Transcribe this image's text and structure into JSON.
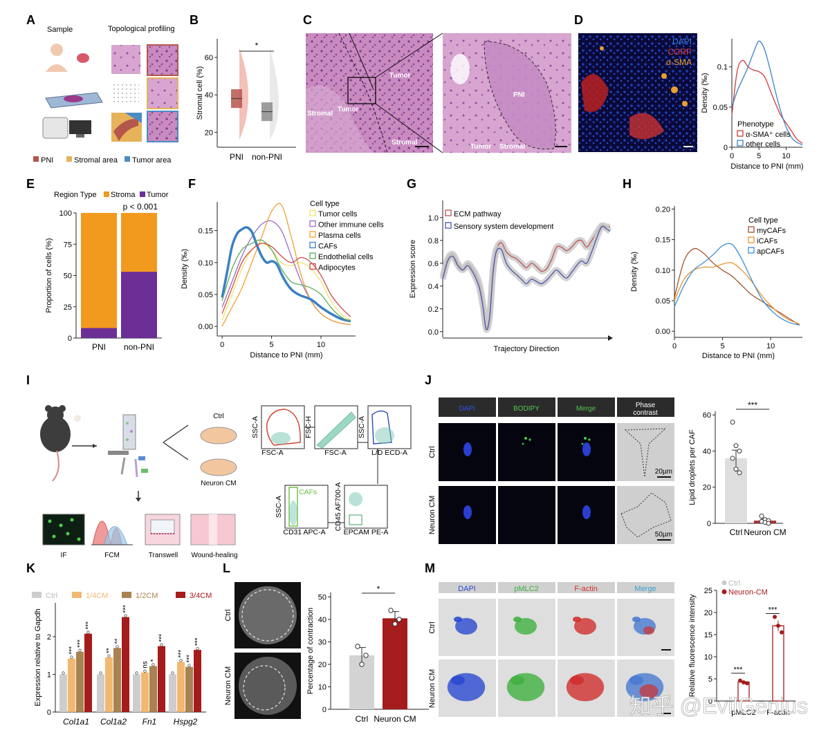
{
  "panel_letters": [
    "A",
    "B",
    "C",
    "D",
    "E",
    "F",
    "G",
    "H",
    "I",
    "J",
    "K",
    "L",
    "M"
  ],
  "panelA": {
    "sample_label": "Sample",
    "profiling_label": "Topological profiling",
    "legend": [
      {
        "label": "PNI",
        "color": "#b5564c"
      },
      {
        "label": "Stromal area",
        "color": "#e6b25a"
      },
      {
        "label": "Tumor area",
        "color": "#4a8cc4"
      }
    ]
  },
  "panelC": {
    "labels": [
      "Tumor",
      "Stromal",
      "Tumor",
      "Stromal",
      "PNI",
      "Tumor",
      "Stromal"
    ]
  },
  "panelD": {
    "stains": [
      {
        "label": "DAPI",
        "color": "#3a7fe0"
      },
      {
        "label": "CGRP",
        "color": "#e03a3a"
      },
      {
        "label": "α-SMA",
        "color": "#e8a030"
      }
    ]
  },
  "panelI": {
    "ctrl_label": "Ctrl",
    "cm_label": "Neuron CM",
    "assays": [
      "IF",
      "FCM",
      "Transwell",
      "Wound-healing"
    ],
    "gates": [
      {
        "x": "FSC-A",
        "y": "SSC-A"
      },
      {
        "x": "FSC-A",
        "y": "FSC-H"
      },
      {
        "x": "L/D ECD-A",
        "y": "SSC-A"
      },
      {
        "x": "CD31 APC-A",
        "y": "SSC-A",
        "gate": "CAFs"
      },
      {
        "x": "EPCAM PE-A",
        "y": "CD45 AF700-A"
      }
    ]
  },
  "panelJ": {
    "columns": [
      "DAPI",
      "BODIPY",
      "Merge",
      "Phase contrast"
    ],
    "rows": [
      "Ctrl",
      "Neuron CM"
    ],
    "scalebars": [
      "20µm",
      "50µm"
    ]
  },
  "panelM": {
    "columns": [
      "DAPI",
      "pMLC2",
      "F-actin",
      "Merge"
    ],
    "rows": [
      "Ctrl",
      "Neuron CM"
    ]
  },
  "panelL": {
    "rows": [
      "Ctrl",
      "Neuron CM"
    ]
  },
  "watermark": "知乎 @EvilGenius",
  "chart_data": [
    {
      "panel": "B",
      "type": "box",
      "ylabel": "Stromal cell (%)",
      "categories": [
        "PNI",
        "non-PNI"
      ],
      "yticks": [
        20,
        40,
        60
      ],
      "ylim": [
        12,
        70
      ],
      "box": [
        {
          "q1": 33,
          "median": 38,
          "q3": 43
        },
        {
          "q1": 26,
          "median": 31,
          "q3": 36
        }
      ],
      "sig": "*"
    },
    {
      "panel": "D",
      "type": "line",
      "xlabel": "Distance to PNI (mm)",
      "ylabel": "Density (‰)",
      "xlim": [
        0,
        13
      ],
      "ylim": [
        0,
        0.135
      ],
      "xticks": [
        0,
        5,
        10
      ],
      "yticks": [
        0,
        0.05,
        0.1
      ],
      "legend_title": "Phenotype",
      "series": [
        {
          "name": "α-SMA⁺ cells",
          "color": "#d03a3a",
          "x": [
            0,
            1,
            2,
            3,
            4,
            5,
            6,
            7,
            8,
            9,
            10,
            11,
            12,
            13
          ],
          "y": [
            0.04,
            0.095,
            0.108,
            0.1,
            0.096,
            0.094,
            0.088,
            0.072,
            0.055,
            0.04,
            0.03,
            0.02,
            0.01,
            0.005
          ]
        },
        {
          "name": "other cells",
          "color": "#3b7fc4",
          "x": [
            0,
            1,
            2,
            3,
            4,
            5,
            6,
            7,
            8,
            9,
            10,
            11,
            12,
            13
          ],
          "y": [
            0.05,
            0.07,
            0.085,
            0.1,
            0.118,
            0.132,
            0.122,
            0.098,
            0.07,
            0.045,
            0.025,
            0.012,
            0.006,
            0.003
          ]
        }
      ]
    },
    {
      "panel": "E",
      "type": "bar",
      "title": "Region Type",
      "ylabel": "Proportion of cells (%)",
      "categories": [
        "PNI",
        "non-PNI"
      ],
      "yticks": [
        0,
        25,
        50,
        75,
        100
      ],
      "annotation": "p < 0.001",
      "series": [
        {
          "name": "Stroma",
          "color": "#f29a1e",
          "values": [
            92,
            47
          ]
        },
        {
          "name": "Tumor",
          "color": "#6b2f96",
          "values": [
            8,
            53
          ]
        }
      ]
    },
    {
      "panel": "F",
      "type": "line",
      "xlabel": "Distance to PNI (mm)",
      "ylabel": "Density (‰)",
      "legend_title": "Cell type",
      "xlim": [
        -0.5,
        13.5
      ],
      "ylim": [
        -0.015,
        0.195
      ],
      "xticks": [
        0,
        5,
        10
      ],
      "yticks": [
        0,
        0.05,
        0.1,
        0.15
      ],
      "series": [
        {
          "name": "Tumor cells",
          "color": "#f4e36a",
          "x": [
            0,
            1,
            2,
            3,
            4,
            5,
            6,
            7,
            8,
            9,
            10,
            11,
            12,
            13
          ],
          "y": [
            0.01,
            0.05,
            0.09,
            0.12,
            0.13,
            0.12,
            0.1,
            0.095,
            0.1,
            0.09,
            0.07,
            0.04,
            0.02,
            0.01
          ]
        },
        {
          "name": "Other immune cells",
          "color": "#9b6cc4",
          "x": [
            0,
            1,
            2,
            3,
            4,
            5,
            6,
            7,
            8,
            9,
            10,
            11,
            12,
            13
          ],
          "y": [
            0.03,
            0.07,
            0.11,
            0.14,
            0.16,
            0.165,
            0.15,
            0.11,
            0.07,
            0.04,
            0.02,
            0.01,
            0.005,
            0.003
          ]
        },
        {
          "name": "Plasma cells",
          "color": "#f0a030",
          "x": [
            0,
            1,
            2,
            3,
            4,
            5,
            6,
            7,
            8,
            9,
            10,
            11,
            12,
            13
          ],
          "y": [
            0.0,
            0.03,
            0.06,
            0.1,
            0.14,
            0.18,
            0.19,
            0.14,
            0.08,
            0.04,
            0.02,
            0.01,
            0.005,
            0.003
          ]
        },
        {
          "name": "CAFs",
          "color": "#3b7fc4",
          "x": [
            0,
            0.5,
            1,
            1.5,
            2,
            2.5,
            3,
            3.5,
            4,
            4.5,
            5,
            5.5,
            6,
            6.5,
            7,
            7.5,
            8,
            9,
            10,
            11,
            12,
            13
          ],
          "y": [
            0.045,
            0.085,
            0.125,
            0.145,
            0.152,
            0.155,
            0.148,
            0.128,
            0.11,
            0.1,
            0.102,
            0.098,
            0.082,
            0.068,
            0.058,
            0.052,
            0.048,
            0.042,
            0.03,
            0.02,
            0.012,
            0.008
          ]
        },
        {
          "name": "Endothelial cells",
          "color": "#5cae5c",
          "x": [
            0,
            1,
            2,
            3,
            4,
            5,
            6,
            7,
            8,
            9,
            10,
            11,
            12,
            13
          ],
          "y": [
            0.04,
            0.09,
            0.12,
            0.13,
            0.135,
            0.12,
            0.09,
            0.07,
            0.065,
            0.06,
            0.05,
            0.03,
            0.015,
            0.008
          ]
        },
        {
          "name": "Adipocytes",
          "color": "#d04848",
          "x": [
            0,
            1,
            2,
            3,
            4,
            5,
            6,
            7,
            8,
            9,
            10,
            11,
            12,
            13
          ],
          "y": [
            0.02,
            0.06,
            0.1,
            0.12,
            0.13,
            0.125,
            0.11,
            0.1,
            0.108,
            0.1,
            0.08,
            0.05,
            0.03,
            0.015
          ]
        }
      ]
    },
    {
      "panel": "G",
      "type": "line",
      "xlabel": "Trajectory Direction",
      "ylabel": "Expression score",
      "ylim": [
        -0.05,
        1.15
      ],
      "yticks": [
        0.0,
        0.2,
        0.4,
        0.6,
        0.8,
        1.0
      ],
      "xlim": [
        0,
        1
      ],
      "series": [
        {
          "name": "ECM pathway",
          "color": "#c05050",
          "x": [
            0,
            0.03,
            0.06,
            0.09,
            0.12,
            0.15,
            0.18,
            0.2,
            0.22,
            0.24,
            0.26,
            0.28,
            0.3,
            0.32,
            0.35,
            0.38,
            0.41,
            0.44,
            0.47,
            0.5,
            0.53,
            0.56,
            0.59,
            0.62,
            0.65,
            0.68,
            0.71,
            0.74,
            0.77,
            0.8,
            0.83,
            0.86,
            0.89,
            0.92,
            0.95,
            0.98,
            1.0
          ],
          "y": [
            0.48,
            0.64,
            0.68,
            0.6,
            0.55,
            0.6,
            0.55,
            0.5,
            0.42,
            0.25,
            0.04,
            0.16,
            0.55,
            0.72,
            0.78,
            0.7,
            0.66,
            0.64,
            0.6,
            0.56,
            0.6,
            0.57,
            0.53,
            0.55,
            0.63,
            0.74,
            0.74,
            0.71,
            0.74,
            0.79,
            0.8,
            0.74,
            0.8,
            0.87,
            0.93,
            0.92,
            0.92
          ]
        },
        {
          "name": "Sensory system development",
          "color": "#4a56a8",
          "x": [
            0,
            0.03,
            0.06,
            0.09,
            0.12,
            0.15,
            0.18,
            0.2,
            0.22,
            0.24,
            0.26,
            0.28,
            0.3,
            0.32,
            0.35,
            0.38,
            0.41,
            0.44,
            0.47,
            0.5,
            0.53,
            0.56,
            0.59,
            0.62,
            0.65,
            0.68,
            0.71,
            0.74,
            0.77,
            0.8,
            0.83,
            0.86,
            0.89,
            0.92,
            0.95,
            0.98,
            1.0
          ],
          "y": [
            0.46,
            0.62,
            0.66,
            0.58,
            0.54,
            0.58,
            0.52,
            0.46,
            0.38,
            0.22,
            0.02,
            0.12,
            0.5,
            0.7,
            0.72,
            0.6,
            0.54,
            0.5,
            0.46,
            0.42,
            0.46,
            0.44,
            0.42,
            0.45,
            0.5,
            0.54,
            0.5,
            0.47,
            0.52,
            0.58,
            0.62,
            0.6,
            0.7,
            0.82,
            0.92,
            0.9,
            0.88
          ]
        }
      ]
    },
    {
      "panel": "H",
      "type": "line",
      "xlabel": "Distance to PNI (mm)",
      "ylabel": "Density (‰)",
      "legend_title": "Cell type",
      "xlim": [
        0,
        13.3
      ],
      "ylim": [
        -0.01,
        0.205
      ],
      "xticks": [
        0,
        5,
        10
      ],
      "yticks": [
        0,
        0.05,
        0.1,
        0.15,
        0.2
      ],
      "series": [
        {
          "name": "myCAFs",
          "color": "#a0522d",
          "x": [
            0,
            1,
            2,
            3,
            4,
            5,
            6,
            7,
            8,
            9,
            10,
            11,
            12,
            13
          ],
          "y": [
            0.055,
            0.115,
            0.135,
            0.128,
            0.112,
            0.1,
            0.09,
            0.075,
            0.06,
            0.05,
            0.04,
            0.03,
            0.02,
            0.01
          ]
        },
        {
          "name": "iCAFs",
          "color": "#e6962e",
          "x": [
            0,
            1,
            2,
            3,
            4,
            5,
            6,
            7,
            8,
            9,
            10,
            11,
            12,
            13
          ],
          "y": [
            0.05,
            0.085,
            0.1,
            0.105,
            0.105,
            0.11,
            0.112,
            0.1,
            0.082,
            0.06,
            0.042,
            0.028,
            0.018,
            0.012
          ]
        },
        {
          "name": "apCAFs",
          "color": "#3b8fd4",
          "x": [
            0,
            1,
            2,
            3,
            4,
            5,
            6,
            7,
            8,
            9,
            10,
            11,
            12,
            13
          ],
          "y": [
            0.04,
            0.075,
            0.1,
            0.112,
            0.125,
            0.14,
            0.142,
            0.118,
            0.085,
            0.055,
            0.035,
            0.022,
            0.014,
            0.01
          ]
        }
      ]
    },
    {
      "panel": "J",
      "type": "bar",
      "ylabel": "Lipid droplets per CAF",
      "categories": [
        "Ctrl",
        "Neuron CM"
      ],
      "values": [
        36,
        1.5
      ],
      "errors": [
        4.5,
        0.8
      ],
      "points": [
        [
          56,
          43,
          40,
          36,
          30,
          28
        ],
        [
          4,
          2,
          1.5,
          1,
          0.5,
          0
        ]
      ],
      "ylim": [
        0,
        62
      ],
      "yticks": [
        0,
        20,
        40,
        60
      ],
      "sig": "***"
    },
    {
      "panel": "K",
      "type": "bar",
      "ylabel": "Expression relative to Gapdh",
      "categories": [
        "Col1a1",
        "Col1a2",
        "Fn1",
        "Hspg2"
      ],
      "ylim": [
        0,
        2.9
      ],
      "yticks": [
        0,
        1,
        2
      ],
      "series": [
        {
          "name": "Ctrl",
          "color": "#cdcdcd",
          "values": [
            1.0,
            1.0,
            1.0,
            1.0
          ],
          "sig": [
            "",
            "",
            "",
            ""
          ]
        },
        {
          "name": "1/4CM",
          "color": "#f2b872",
          "values": [
            1.42,
            1.45,
            1.05,
            1.33
          ],
          "sig": [
            "***",
            "**",
            "ns",
            "***"
          ]
        },
        {
          "name": "1/2CM",
          "color": "#a88250",
          "values": [
            1.6,
            1.7,
            1.22,
            1.2
          ],
          "sig": [
            "***",
            "**",
            "*",
            "***"
          ]
        },
        {
          "name": "3/4CM",
          "color": "#a51c1c",
          "values": [
            2.08,
            2.52,
            1.75,
            1.65
          ],
          "sig": [
            "***",
            "***",
            "***",
            "***"
          ]
        }
      ]
    },
    {
      "panel": "L",
      "type": "bar",
      "ylabel": "Percentage of contraction",
      "categories": [
        "Ctrl",
        "Neuron CM"
      ],
      "values": [
        24,
        40.5
      ],
      "errors": [
        3.5,
        3
      ],
      "points": [
        [
          28,
          20,
          24
        ],
        [
          44,
          38,
          40
        ]
      ],
      "colors": [
        "#d3d3d3",
        "#a51c1c"
      ],
      "ylim": [
        0,
        52
      ],
      "yticks": [
        0,
        10,
        20,
        30,
        40,
        50
      ],
      "sig": "*"
    },
    {
      "panel": "M",
      "type": "bar",
      "ylabel": "Relative fluorescence intensity",
      "categories": [
        "pMLC2",
        "F-actin"
      ],
      "legend": [
        "Ctrl",
        "Neuron-CM"
      ],
      "series": [
        {
          "name": "Ctrl",
          "color": "#cccccc",
          "values": [
            1,
            1
          ]
        },
        {
          "name": "Neuron-CM",
          "color": "#a51c1c",
          "values": [
            4.3,
            17
          ]
        }
      ],
      "errors": [
        0.4,
        1.2
      ],
      "points": [
        [
          4.6,
          4.2,
          4.0
        ],
        [
          19,
          17,
          15.5
        ]
      ],
      "ylim": [
        0,
        25
      ],
      "yticks": [
        0,
        5,
        10,
        15,
        20,
        25
      ],
      "sig": [
        "***",
        "***"
      ]
    }
  ]
}
